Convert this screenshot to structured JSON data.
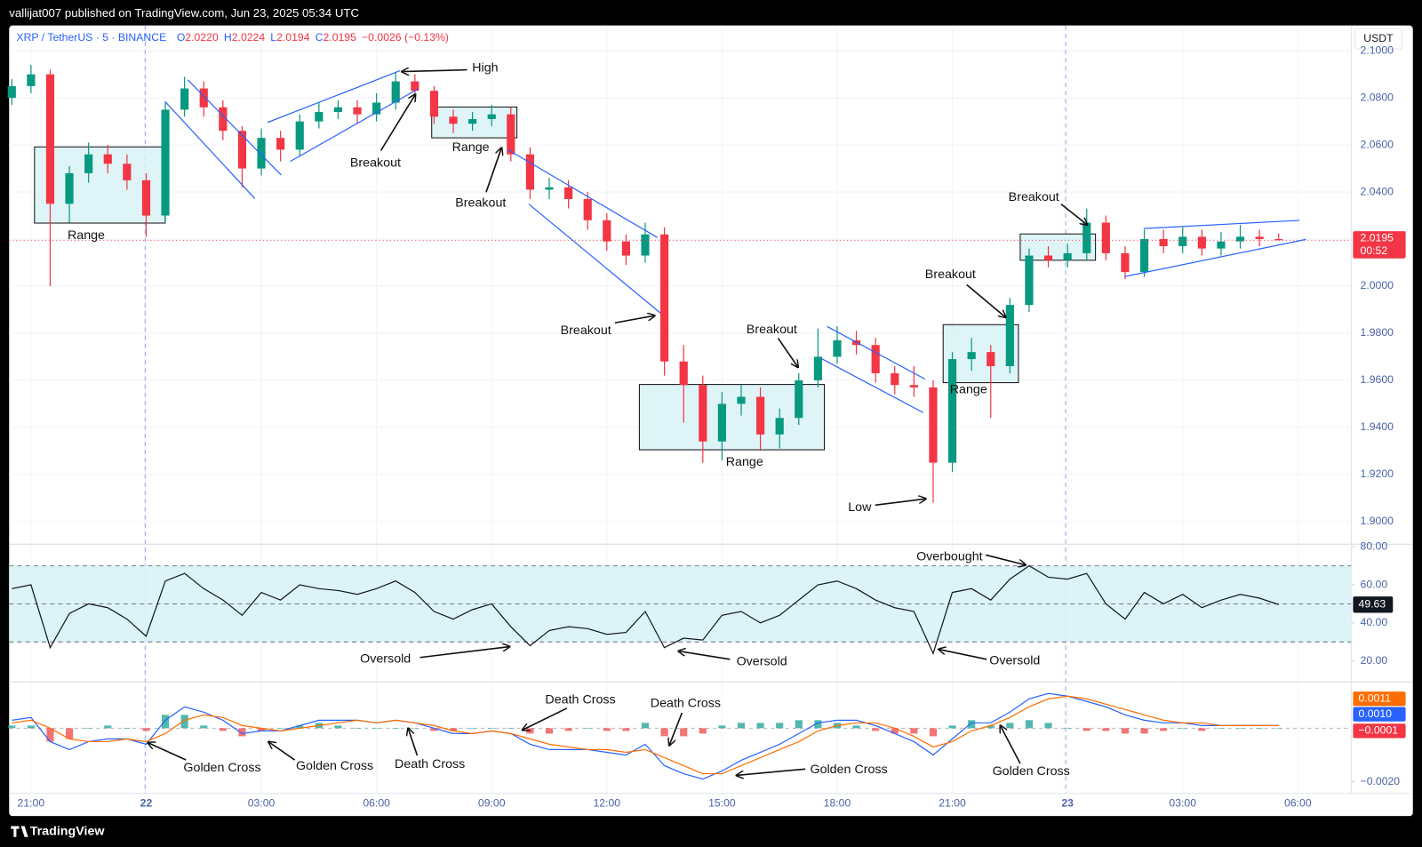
{
  "header": "vallijat007 published on TradingView.com, Jun 23, 2025 05:34 UTC",
  "footer": "TradingView",
  "chart_data": [
    {
      "type": "candlestick",
      "legend": {
        "symbol": "XRP / TetherUS · 5 · BINANCE",
        "fields": [
          {
            "key": "O",
            "text": "2.0220"
          },
          {
            "key": "H",
            "text": "2.0224"
          },
          {
            "key": "L",
            "text": "2.0194"
          },
          {
            "key": "C",
            "text": "2.0195"
          }
        ],
        "change": "−0.0026 (−0.13%)"
      },
      "axis_unit": "USDT",
      "up_color": "#089981",
      "down_color": "#f23645",
      "x": [
        -0.5,
        0,
        0.5,
        1,
        1.5,
        2,
        2.5,
        3,
        3.5,
        4,
        4.5,
        5,
        5.5,
        6,
        6.5,
        7,
        7.5,
        8,
        8.5,
        9,
        9.5,
        10,
        10.5,
        11,
        11.5,
        12,
        12.5,
        13,
        13.5,
        14,
        14.5,
        15,
        15.5,
        16,
        16.5,
        17,
        17.5,
        18,
        18.5,
        19,
        19.5,
        20,
        20.5,
        21,
        21.5,
        22,
        22.5,
        23,
        23.5,
        24,
        24.5,
        25,
        25.5,
        26,
        26.5,
        27,
        27.5,
        28,
        28.5,
        29,
        29.5,
        30,
        30.5,
        31,
        31.5,
        32,
        32.5
      ],
      "open": [
        2.08,
        2.085,
        2.09,
        2.035,
        2.048,
        2.056,
        2.052,
        2.045,
        2.03,
        2.075,
        2.084,
        2.076,
        2.066,
        2.05,
        2.063,
        2.058,
        2.07,
        2.074,
        2.076,
        2.073,
        2.078,
        2.087,
        2.083,
        2.072,
        2.069,
        2.071,
        2.073,
        2.056,
        2.041,
        2.042,
        2.037,
        2.028,
        2.019,
        2.013,
        2.022,
        1.968,
        1.958,
        1.934,
        1.95,
        1.953,
        1.937,
        1.944,
        1.96,
        1.97,
        1.977,
        1.975,
        1.963,
        1.958,
        1.957,
        1.925,
        1.969,
        1.972,
        1.966,
        1.992,
        2.013,
        2.011,
        2.014,
        2.027,
        2.014,
        2.006,
        2.02,
        2.017,
        2.021,
        2.016,
        2.019,
        2.021,
        2.02
      ],
      "high": [
        2.088,
        2.094,
        2.092,
        2.051,
        2.061,
        2.06,
        2.056,
        2.048,
        2.078,
        2.089,
        2.087,
        2.079,
        2.068,
        2.067,
        2.066,
        2.073,
        2.078,
        2.079,
        2.079,
        2.082,
        2.091,
        2.09,
        2.085,
        2.075,
        2.074,
        2.077,
        2.076,
        2.059,
        2.046,
        2.045,
        2.04,
        2.031,
        2.022,
        2.027,
        2.025,
        1.975,
        1.962,
        1.955,
        1.958,
        1.957,
        1.948,
        1.963,
        1.982,
        1.983,
        1.981,
        1.978,
        1.966,
        1.966,
        1.96,
        1.972,
        1.978,
        1.975,
        1.995,
        2.016,
        2.017,
        2.018,
        2.033,
        2.03,
        2.017,
        2.024,
        2.024,
        2.025,
        2.024,
        2.023,
        2.026,
        2.024,
        2.0224
      ],
      "low": [
        2.077,
        2.082,
        2.0,
        2.027,
        2.044,
        2.048,
        2.041,
        2.021,
        2.027,
        2.072,
        2.072,
        2.062,
        2.042,
        2.047,
        2.053,
        2.055,
        2.067,
        2.071,
        2.069,
        2.07,
        2.075,
        2.08,
        2.069,
        2.065,
        2.066,
        2.068,
        2.053,
        2.037,
        2.037,
        2.033,
        2.024,
        2.015,
        2.009,
        2.01,
        1.962,
        1.942,
        1.925,
        1.926,
        1.945,
        1.93,
        1.931,
        1.941,
        1.957,
        1.967,
        1.971,
        1.959,
        1.954,
        1.953,
        1.908,
        1.921,
        1.964,
        1.944,
        1.963,
        1.989,
        2.008,
        2.008,
        2.011,
        2.011,
        2.003,
        2.004,
        2.014,
        2.014,
        2.013,
        2.013,
        2.016,
        2.017,
        2.0194
      ],
      "close": [
        2.085,
        2.09,
        2.035,
        2.048,
        2.056,
        2.052,
        2.045,
        2.03,
        2.075,
        2.084,
        2.076,
        2.066,
        2.05,
        2.063,
        2.058,
        2.07,
        2.074,
        2.076,
        2.073,
        2.078,
        2.087,
        2.083,
        2.072,
        2.069,
        2.071,
        2.073,
        2.056,
        2.041,
        2.042,
        2.037,
        2.028,
        2.019,
        2.013,
        2.022,
        1.968,
        1.958,
        1.934,
        1.95,
        1.953,
        1.937,
        1.944,
        1.96,
        1.97,
        1.977,
        1.975,
        1.963,
        1.958,
        1.957,
        1.925,
        1.969,
        1.972,
        1.966,
        1.992,
        2.013,
        2.011,
        2.014,
        2.027,
        2.014,
        2.006,
        2.02,
        2.017,
        2.021,
        2.016,
        2.019,
        2.021,
        2.02,
        2.0195
      ],
      "xlim": [
        -0.57,
        34.39
      ],
      "xticks": [
        {
          "value": 0,
          "label": "21:00"
        },
        {
          "value": 3,
          "label": "22"
        },
        {
          "value": 6,
          "label": "03:00"
        },
        {
          "value": 9,
          "label": "06:00"
        },
        {
          "value": 12,
          "label": "09:00"
        },
        {
          "value": 15,
          "label": "12:00"
        },
        {
          "value": 18,
          "label": "15:00"
        },
        {
          "value": 21,
          "label": "18:00"
        },
        {
          "value": 24,
          "label": "21:00"
        },
        {
          "value": 27,
          "label": "23"
        },
        {
          "value": 30,
          "label": "03:00"
        },
        {
          "value": 33,
          "label": "06:00"
        }
      ],
      "ylim": [
        1.8904,
        2.1108
      ],
      "yticks": [
        {
          "value": 1.9,
          "label": "1.9000"
        },
        {
          "value": 1.92,
          "label": "1.9200"
        },
        {
          "value": 1.94,
          "label": "1.9400"
        },
        {
          "value": 1.96,
          "label": "1.9600"
        },
        {
          "value": 1.98,
          "label": "1.9800"
        },
        {
          "value": 2.0,
          "label": "2.0000"
        },
        {
          "value": 2.02,
          "label": "2.0200"
        },
        {
          "value": 2.04,
          "label": "2.0400"
        },
        {
          "value": 2.06,
          "label": "2.0600"
        },
        {
          "value": 2.08,
          "label": "2.0800"
        },
        {
          "value": 2.1,
          "label": "2.1000"
        }
      ],
      "grid": true,
      "last_price": {
        "value": 2.0195,
        "label": "2.0195"
      },
      "countdown": "00:52",
      "annotations": [
        "High",
        "Breakout",
        "Range",
        "Breakout",
        "Range",
        "Breakout",
        "Breakout",
        "Range",
        "Range",
        "Low",
        "Breakout",
        "Breakout"
      ]
    },
    {
      "type": "line",
      "color": "#131722",
      "band_color": "#d8f2f6",
      "x": [
        -0.5,
        0,
        0.5,
        1,
        1.5,
        2,
        2.5,
        3,
        3.5,
        4,
        4.5,
        5,
        5.5,
        6,
        6.5,
        7,
        7.5,
        8,
        8.5,
        9,
        9.5,
        10,
        10.5,
        11,
        11.5,
        12,
        12.5,
        13,
        13.5,
        14,
        14.5,
        15,
        15.5,
        16,
        16.5,
        17,
        17.5,
        18,
        18.5,
        19,
        19.5,
        20,
        20.5,
        21,
        21.5,
        22,
        22.5,
        23,
        23.5,
        24,
        24.5,
        25,
        25.5,
        26,
        26.5,
        27,
        27.5,
        28,
        28.5,
        29,
        29.5,
        30,
        30.5,
        31,
        31.5,
        32,
        32.5
      ],
      "values": [
        58,
        60,
        27,
        45,
        50,
        48,
        42,
        33,
        62,
        66,
        58,
        52,
        44,
        56,
        52,
        60,
        58,
        57,
        55,
        58,
        62,
        56,
        46,
        42,
        47,
        50,
        38,
        28,
        36,
        38,
        37,
        34,
        35,
        46,
        27,
        32,
        31,
        44,
        46,
        40,
        44,
        52,
        60,
        62,
        58,
        52,
        48,
        46,
        24,
        56,
        58,
        52,
        63,
        70,
        64,
        63,
        66,
        50,
        42,
        56,
        50,
        55,
        48,
        52,
        55,
        53,
        49.63
      ],
      "ylim": [
        9,
        81.4
      ],
      "yticks": [
        {
          "value": 80,
          "label": "80.00"
        },
        {
          "value": 60,
          "label": "60.00"
        },
        {
          "value": 40,
          "label": "40.00"
        },
        {
          "value": 20,
          "label": "20.00"
        }
      ],
      "bands": {
        "upper": 70,
        "middle": 50,
        "lower": 30
      },
      "last_value": {
        "value": 49.63,
        "label": "49.63"
      },
      "annotations": [
        "Overbought",
        "Oversold",
        "Oversold",
        "Oversold"
      ]
    },
    {
      "type": "macd",
      "x": [
        -0.5,
        0,
        0.5,
        1,
        1.5,
        2,
        2.5,
        3,
        3.5,
        4,
        4.5,
        5,
        5.5,
        6,
        6.5,
        7,
        7.5,
        8,
        8.5,
        9,
        9.5,
        10,
        10.5,
        11,
        11.5,
        12,
        12.5,
        13,
        13.5,
        14,
        14.5,
        15,
        15.5,
        16,
        16.5,
        17,
        17.5,
        18,
        18.5,
        19,
        19.5,
        20,
        20.5,
        21,
        21.5,
        22,
        22.5,
        23,
        23.5,
        24,
        24.5,
        25,
        25.5,
        26,
        26.5,
        27,
        27.5,
        28,
        28.5,
        29,
        29.5,
        30,
        30.5,
        31,
        31.5,
        32,
        32.5
      ],
      "series": [
        {
          "kind": "histogram",
          "color": "#26a69a",
          "down_color": "#ef5350",
          "values": [
            0.0001,
            0.0001,
            -0.0005,
            -0.0004,
            0,
            0.0001,
            0,
            -0.0001,
            0.0005,
            0.0005,
            0.0001,
            -0.0001,
            -0.0003,
            -0.0001,
            0,
            0.0001,
            0.0002,
            0.0001,
            0,
            0,
            0,
            0,
            -0.0001,
            -0.0001,
            0,
            0,
            0,
            -0.0002,
            -0.0002,
            -0.0001,
            0,
            -0.0001,
            -0.0001,
            0.0002,
            -0.0003,
            -0.0003,
            -0.0002,
            0.0001,
            0.0002,
            0.0002,
            0.0002,
            0.0003,
            0.0003,
            0.0002,
            0.0001,
            -0.0001,
            -0.0002,
            -0.0002,
            -0.0003,
            0.0001,
            0.0003,
            0.0001,
            0.0002,
            0.0003,
            0.0002,
            0,
            -0.0001,
            -0.0001,
            -0.0002,
            -0.0002,
            -0.0001,
            0,
            -0.0001,
            0,
            0,
            0,
            0
          ]
        },
        {
          "kind": "line",
          "color": "#2962ff",
          "values": [
            0.0003,
            0.0004,
            -0.0005,
            -0.0008,
            -0.0005,
            -0.0004,
            -0.0004,
            -0.0006,
            0.0003,
            0.0008,
            0.0006,
            0.0003,
            -0.0002,
            -0.0001,
            -0.0001,
            0.0001,
            0.0003,
            0.0003,
            0.0003,
            0.0002,
            0.0003,
            0.0002,
            0,
            -0.0002,
            -0.0002,
            -0.0001,
            -0.0002,
            -0.0006,
            -0.0008,
            -0.0008,
            -0.0008,
            -0.0009,
            -0.001,
            -0.0006,
            -0.0014,
            -0.0017,
            -0.0019,
            -0.0016,
            -0.0012,
            -0.0009,
            -0.0006,
            -0.0002,
            0.0002,
            0.0003,
            0.0003,
            0.0001,
            -0.0002,
            -0.0005,
            -0.001,
            -0.0004,
            0.0002,
            0.0002,
            0.0006,
            0.0011,
            0.0013,
            0.0012,
            0.001,
            0.0008,
            0.0005,
            0.0003,
            0.0002,
            0.0002,
            0.0001,
            0.0001,
            0.0001,
            0.0001,
            0.0001
          ]
        },
        {
          "kind": "line",
          "color": "#ff6d00",
          "values": [
            0.0002,
            0.0003,
            0,
            -0.0004,
            -0.0005,
            -0.0005,
            -0.0004,
            -0.0005,
            -0.0002,
            0.0003,
            0.0005,
            0.0004,
            0.0001,
            0,
            -0.0001,
            0,
            0.0001,
            0.0002,
            0.0003,
            0.0002,
            0.0003,
            0.0002,
            0.0001,
            -0.0001,
            -0.0002,
            -0.0001,
            -0.0002,
            -0.0004,
            -0.0006,
            -0.0007,
            -0.0008,
            -0.0008,
            -0.0009,
            -0.0008,
            -0.0011,
            -0.0014,
            -0.0017,
            -0.0017,
            -0.0014,
            -0.0011,
            -0.0008,
            -0.0005,
            -0.0001,
            0.0001,
            0.0002,
            0.0002,
            0,
            -0.0003,
            -0.0007,
            -0.0005,
            -0.0001,
            0.0001,
            0.0004,
            0.0008,
            0.0011,
            0.0012,
            0.0011,
            0.0009,
            0.0007,
            0.0005,
            0.0003,
            0.0002,
            0.0002,
            0.0001,
            0.0001,
            0.0001,
            0.0001
          ]
        }
      ],
      "ylim": [
        -0.00244,
        0.00173
      ],
      "yticks": [
        {
          "value": -0.002,
          "label": "−0.0020"
        }
      ],
      "scale_labels": [
        {
          "value": 0.0011,
          "label": "0.0011",
          "color": "#ff6d00"
        },
        {
          "value": 0.001,
          "label": "0.0010",
          "color": "#2962ff"
        },
        {
          "value": -0.0001,
          "label": "−0.0001",
          "color": "#f23645"
        }
      ],
      "annotations": [
        "Death Cross",
        "Death Cross",
        "Golden Cross",
        "Golden Cross",
        "Death Cross",
        "Golden Cross",
        "Golden Cross"
      ]
    }
  ]
}
